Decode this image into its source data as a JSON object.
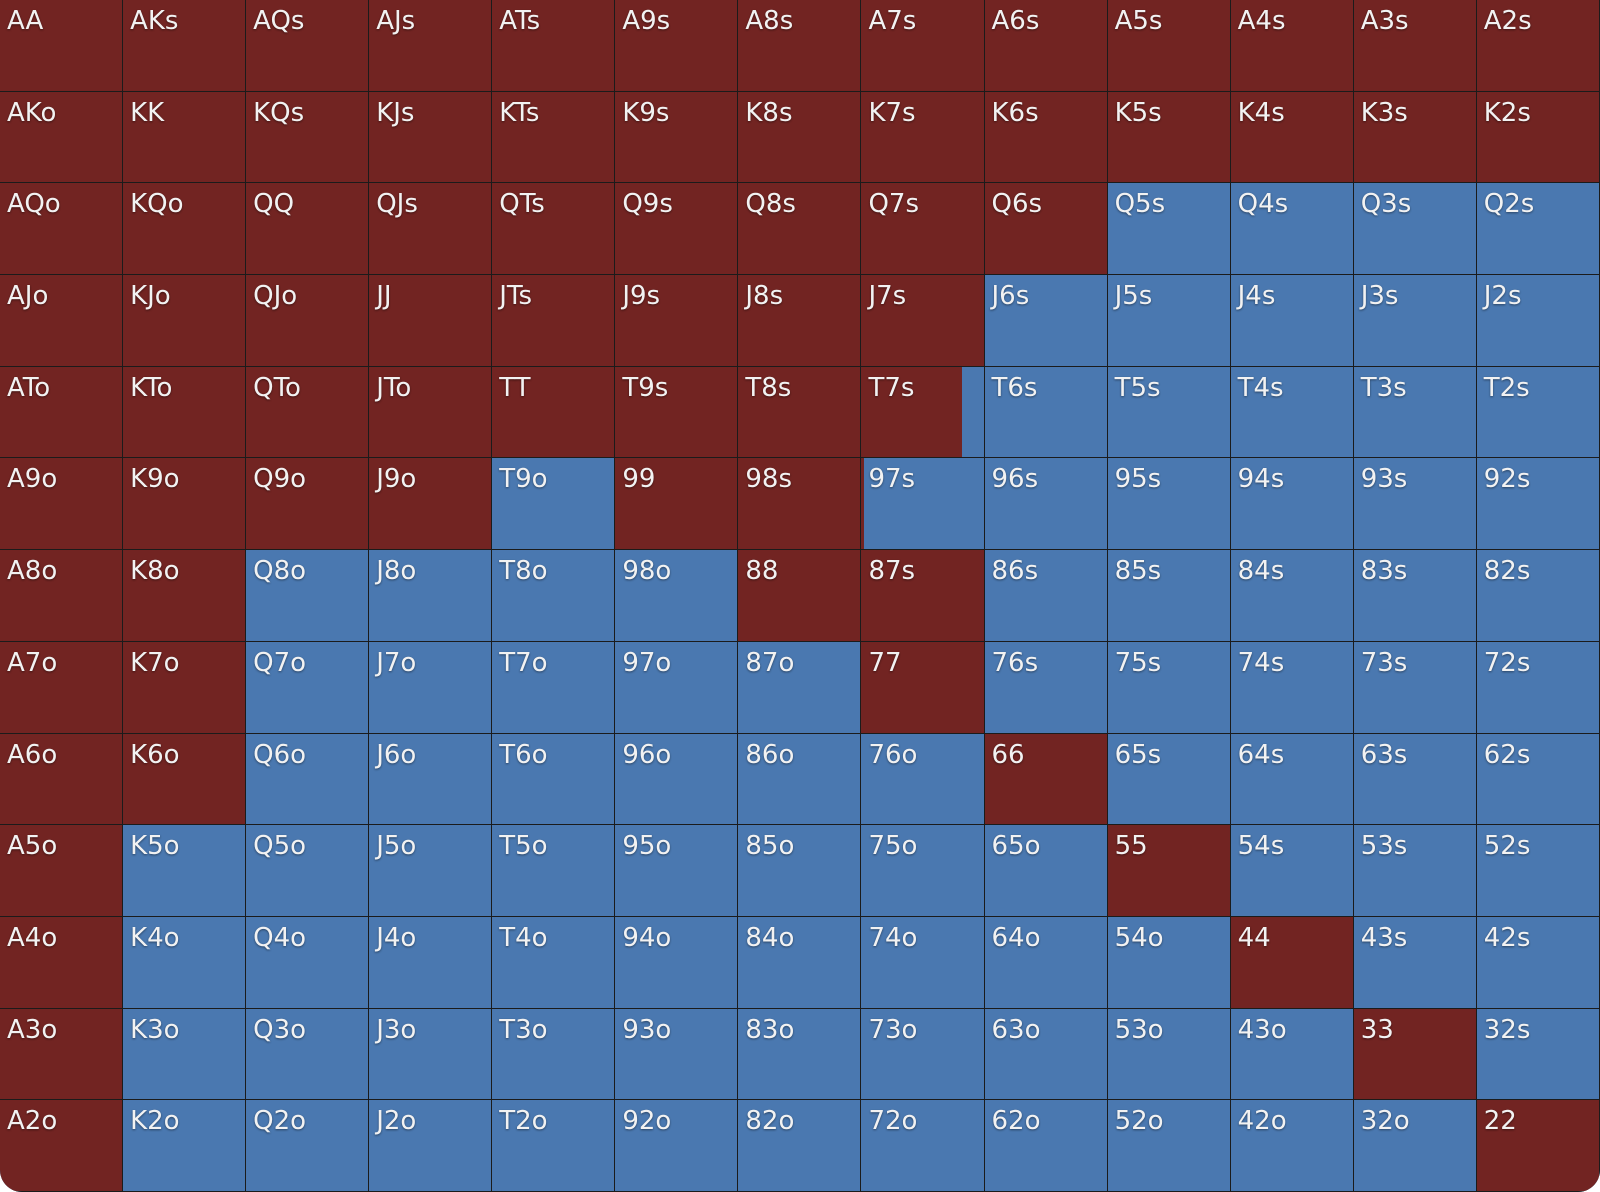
{
  "colors": {
    "raise": "#722422",
    "fold": "#4a78b0",
    "grid_line": "#1b1b1b",
    "label": "#f2f2f2"
  },
  "range_grid": {
    "rows": [
      [
        {
          "hand": "AA",
          "action_fraction": 1
        },
        {
          "hand": "AKs",
          "action_fraction": 1
        },
        {
          "hand": "AQs",
          "action_fraction": 1
        },
        {
          "hand": "AJs",
          "action_fraction": 1
        },
        {
          "hand": "ATs",
          "action_fraction": 1
        },
        {
          "hand": "A9s",
          "action_fraction": 1
        },
        {
          "hand": "A8s",
          "action_fraction": 1
        },
        {
          "hand": "A7s",
          "action_fraction": 1
        },
        {
          "hand": "A6s",
          "action_fraction": 1
        },
        {
          "hand": "A5s",
          "action_fraction": 1
        },
        {
          "hand": "A4s",
          "action_fraction": 1
        },
        {
          "hand": "A3s",
          "action_fraction": 1
        },
        {
          "hand": "A2s",
          "action_fraction": 1
        }
      ],
      [
        {
          "hand": "AKo",
          "action_fraction": 1
        },
        {
          "hand": "KK",
          "action_fraction": 1
        },
        {
          "hand": "KQs",
          "action_fraction": 1
        },
        {
          "hand": "KJs",
          "action_fraction": 1
        },
        {
          "hand": "KTs",
          "action_fraction": 1
        },
        {
          "hand": "K9s",
          "action_fraction": 1
        },
        {
          "hand": "K8s",
          "action_fraction": 1
        },
        {
          "hand": "K7s",
          "action_fraction": 1
        },
        {
          "hand": "K6s",
          "action_fraction": 1
        },
        {
          "hand": "K5s",
          "action_fraction": 1
        },
        {
          "hand": "K4s",
          "action_fraction": 1
        },
        {
          "hand": "K3s",
          "action_fraction": 1
        },
        {
          "hand": "K2s",
          "action_fraction": 1
        }
      ],
      [
        {
          "hand": "AQo",
          "action_fraction": 1
        },
        {
          "hand": "KQo",
          "action_fraction": 1
        },
        {
          "hand": "QQ",
          "action_fraction": 1
        },
        {
          "hand": "QJs",
          "action_fraction": 1
        },
        {
          "hand": "QTs",
          "action_fraction": 1
        },
        {
          "hand": "Q9s",
          "action_fraction": 1
        },
        {
          "hand": "Q8s",
          "action_fraction": 1
        },
        {
          "hand": "Q7s",
          "action_fraction": 1
        },
        {
          "hand": "Q6s",
          "action_fraction": 1
        },
        {
          "hand": "Q5s",
          "action_fraction": 0
        },
        {
          "hand": "Q4s",
          "action_fraction": 0
        },
        {
          "hand": "Q3s",
          "action_fraction": 0
        },
        {
          "hand": "Q2s",
          "action_fraction": 0
        }
      ],
      [
        {
          "hand": "AJo",
          "action_fraction": 1
        },
        {
          "hand": "KJo",
          "action_fraction": 1
        },
        {
          "hand": "QJo",
          "action_fraction": 1
        },
        {
          "hand": "JJ",
          "action_fraction": 1
        },
        {
          "hand": "JTs",
          "action_fraction": 1
        },
        {
          "hand": "J9s",
          "action_fraction": 1
        },
        {
          "hand": "J8s",
          "action_fraction": 1
        },
        {
          "hand": "J7s",
          "action_fraction": 1
        },
        {
          "hand": "J6s",
          "action_fraction": 0
        },
        {
          "hand": "J5s",
          "action_fraction": 0
        },
        {
          "hand": "J4s",
          "action_fraction": 0
        },
        {
          "hand": "J3s",
          "action_fraction": 0
        },
        {
          "hand": "J2s",
          "action_fraction": 0
        }
      ],
      [
        {
          "hand": "ATo",
          "action_fraction": 1
        },
        {
          "hand": "KTo",
          "action_fraction": 1
        },
        {
          "hand": "QTo",
          "action_fraction": 1
        },
        {
          "hand": "JTo",
          "action_fraction": 1
        },
        {
          "hand": "TT",
          "action_fraction": 1
        },
        {
          "hand": "T9s",
          "action_fraction": 1
        },
        {
          "hand": "T8s",
          "action_fraction": 1
        },
        {
          "hand": "T7s",
          "action_fraction": 0.82
        },
        {
          "hand": "T6s",
          "action_fraction": 0
        },
        {
          "hand": "T5s",
          "action_fraction": 0
        },
        {
          "hand": "T4s",
          "action_fraction": 0
        },
        {
          "hand": "T3s",
          "action_fraction": 0
        },
        {
          "hand": "T2s",
          "action_fraction": 0
        }
      ],
      [
        {
          "hand": "A9o",
          "action_fraction": 1
        },
        {
          "hand": "K9o",
          "action_fraction": 1
        },
        {
          "hand": "Q9o",
          "action_fraction": 1
        },
        {
          "hand": "J9o",
          "action_fraction": 1
        },
        {
          "hand": "T9o",
          "action_fraction": 0
        },
        {
          "hand": "99",
          "action_fraction": 1
        },
        {
          "hand": "98s",
          "action_fraction": 1
        },
        {
          "hand": "97s",
          "action_fraction": 0.02
        },
        {
          "hand": "96s",
          "action_fraction": 0
        },
        {
          "hand": "95s",
          "action_fraction": 0
        },
        {
          "hand": "94s",
          "action_fraction": 0
        },
        {
          "hand": "93s",
          "action_fraction": 0
        },
        {
          "hand": "92s",
          "action_fraction": 0
        }
      ],
      [
        {
          "hand": "A8o",
          "action_fraction": 1
        },
        {
          "hand": "K8o",
          "action_fraction": 1
        },
        {
          "hand": "Q8o",
          "action_fraction": 0
        },
        {
          "hand": "J8o",
          "action_fraction": 0
        },
        {
          "hand": "T8o",
          "action_fraction": 0
        },
        {
          "hand": "98o",
          "action_fraction": 0
        },
        {
          "hand": "88",
          "action_fraction": 1
        },
        {
          "hand": "87s",
          "action_fraction": 1
        },
        {
          "hand": "86s",
          "action_fraction": 0
        },
        {
          "hand": "85s",
          "action_fraction": 0
        },
        {
          "hand": "84s",
          "action_fraction": 0
        },
        {
          "hand": "83s",
          "action_fraction": 0
        },
        {
          "hand": "82s",
          "action_fraction": 0
        }
      ],
      [
        {
          "hand": "A7o",
          "action_fraction": 1
        },
        {
          "hand": "K7o",
          "action_fraction": 1
        },
        {
          "hand": "Q7o",
          "action_fraction": 0
        },
        {
          "hand": "J7o",
          "action_fraction": 0
        },
        {
          "hand": "T7o",
          "action_fraction": 0
        },
        {
          "hand": "97o",
          "action_fraction": 0
        },
        {
          "hand": "87o",
          "action_fraction": 0
        },
        {
          "hand": "77",
          "action_fraction": 1
        },
        {
          "hand": "76s",
          "action_fraction": 0
        },
        {
          "hand": "75s",
          "action_fraction": 0
        },
        {
          "hand": "74s",
          "action_fraction": 0
        },
        {
          "hand": "73s",
          "action_fraction": 0
        },
        {
          "hand": "72s",
          "action_fraction": 0
        }
      ],
      [
        {
          "hand": "A6o",
          "action_fraction": 1
        },
        {
          "hand": "K6o",
          "action_fraction": 1
        },
        {
          "hand": "Q6o",
          "action_fraction": 0
        },
        {
          "hand": "J6o",
          "action_fraction": 0
        },
        {
          "hand": "T6o",
          "action_fraction": 0
        },
        {
          "hand": "96o",
          "action_fraction": 0
        },
        {
          "hand": "86o",
          "action_fraction": 0
        },
        {
          "hand": "76o",
          "action_fraction": 0
        },
        {
          "hand": "66",
          "action_fraction": 1
        },
        {
          "hand": "65s",
          "action_fraction": 0
        },
        {
          "hand": "64s",
          "action_fraction": 0
        },
        {
          "hand": "63s",
          "action_fraction": 0
        },
        {
          "hand": "62s",
          "action_fraction": 0
        }
      ],
      [
        {
          "hand": "A5o",
          "action_fraction": 1
        },
        {
          "hand": "K5o",
          "action_fraction": 0
        },
        {
          "hand": "Q5o",
          "action_fraction": 0
        },
        {
          "hand": "J5o",
          "action_fraction": 0
        },
        {
          "hand": "T5o",
          "action_fraction": 0
        },
        {
          "hand": "95o",
          "action_fraction": 0
        },
        {
          "hand": "85o",
          "action_fraction": 0
        },
        {
          "hand": "75o",
          "action_fraction": 0
        },
        {
          "hand": "65o",
          "action_fraction": 0
        },
        {
          "hand": "55",
          "action_fraction": 1
        },
        {
          "hand": "54s",
          "action_fraction": 0
        },
        {
          "hand": "53s",
          "action_fraction": 0
        },
        {
          "hand": "52s",
          "action_fraction": 0
        }
      ],
      [
        {
          "hand": "A4o",
          "action_fraction": 1
        },
        {
          "hand": "K4o",
          "action_fraction": 0
        },
        {
          "hand": "Q4o",
          "action_fraction": 0
        },
        {
          "hand": "J4o",
          "action_fraction": 0
        },
        {
          "hand": "T4o",
          "action_fraction": 0
        },
        {
          "hand": "94o",
          "action_fraction": 0
        },
        {
          "hand": "84o",
          "action_fraction": 0
        },
        {
          "hand": "74o",
          "action_fraction": 0
        },
        {
          "hand": "64o",
          "action_fraction": 0
        },
        {
          "hand": "54o",
          "action_fraction": 0
        },
        {
          "hand": "44",
          "action_fraction": 1
        },
        {
          "hand": "43s",
          "action_fraction": 0
        },
        {
          "hand": "42s",
          "action_fraction": 0
        }
      ],
      [
        {
          "hand": "A3o",
          "action_fraction": 1
        },
        {
          "hand": "K3o",
          "action_fraction": 0
        },
        {
          "hand": "Q3o",
          "action_fraction": 0
        },
        {
          "hand": "J3o",
          "action_fraction": 0
        },
        {
          "hand": "T3o",
          "action_fraction": 0
        },
        {
          "hand": "93o",
          "action_fraction": 0
        },
        {
          "hand": "83o",
          "action_fraction": 0
        },
        {
          "hand": "73o",
          "action_fraction": 0
        },
        {
          "hand": "63o",
          "action_fraction": 0
        },
        {
          "hand": "53o",
          "action_fraction": 0
        },
        {
          "hand": "43o",
          "action_fraction": 0
        },
        {
          "hand": "33",
          "action_fraction": 1
        },
        {
          "hand": "32s",
          "action_fraction": 0
        }
      ],
      [
        {
          "hand": "A2o",
          "action_fraction": 1
        },
        {
          "hand": "K2o",
          "action_fraction": 0
        },
        {
          "hand": "Q2o",
          "action_fraction": 0
        },
        {
          "hand": "J2o",
          "action_fraction": 0
        },
        {
          "hand": "T2o",
          "action_fraction": 0
        },
        {
          "hand": "92o",
          "action_fraction": 0
        },
        {
          "hand": "82o",
          "action_fraction": 0
        },
        {
          "hand": "72o",
          "action_fraction": 0
        },
        {
          "hand": "62o",
          "action_fraction": 0
        },
        {
          "hand": "52o",
          "action_fraction": 0
        },
        {
          "hand": "42o",
          "action_fraction": 0
        },
        {
          "hand": "32o",
          "action_fraction": 0
        },
        {
          "hand": "22",
          "action_fraction": 1
        }
      ]
    ]
  }
}
